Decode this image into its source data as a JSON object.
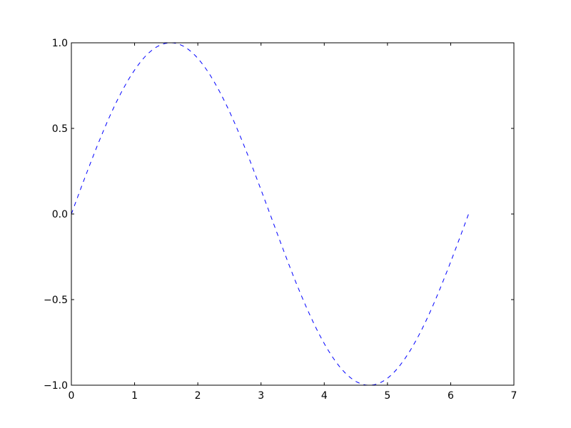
{
  "chart_data": {
    "type": "line",
    "title": "",
    "xlabel": "",
    "ylabel": "",
    "xlim": [
      0,
      7
    ],
    "ylim": [
      -1.0,
      1.0
    ],
    "grid": false,
    "x_ticks": [
      "0",
      "1",
      "2",
      "3",
      "4",
      "5",
      "6",
      "7"
    ],
    "y_ticks": [
      "−1.0",
      "−0.5",
      "0.0",
      "0.5",
      "1.0"
    ],
    "x_tick_values": [
      0,
      1,
      2,
      3,
      4,
      5,
      6,
      7
    ],
    "y_tick_values": [
      -1.0,
      -0.5,
      0.0,
      0.5,
      1.0
    ],
    "series": [
      {
        "color": "#0000ff",
        "line_style": "dashed",
        "x": [
          0,
          0.196,
          0.393,
          0.589,
          0.785,
          0.982,
          1.178,
          1.374,
          1.571,
          1.767,
          1.963,
          2.16,
          2.356,
          2.553,
          2.749,
          2.945,
          3.142,
          3.338,
          3.534,
          3.731,
          3.927,
          4.123,
          4.32,
          4.516,
          4.712,
          4.909,
          5.105,
          5.301,
          5.498,
          5.694,
          5.89,
          6.087,
          6.283
        ],
        "y": [
          0,
          0.195,
          0.383,
          0.556,
          0.707,
          0.831,
          0.924,
          0.981,
          1,
          0.981,
          0.924,
          0.831,
          0.707,
          0.556,
          0.383,
          0.195,
          0,
          -0.195,
          -0.383,
          -0.556,
          -0.707,
          -0.831,
          -0.924,
          -0.981,
          -1,
          -0.981,
          -0.924,
          -0.831,
          -0.707,
          -0.556,
          -0.383,
          -0.195,
          0
        ]
      }
    ]
  }
}
